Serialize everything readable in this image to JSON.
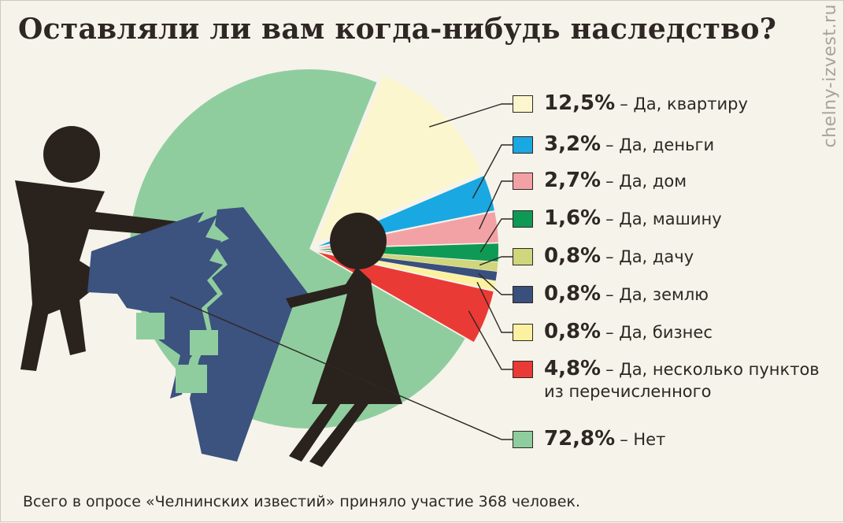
{
  "title": "Оставляли ли вам когда-нибудь наследство?",
  "watermark": "chelny-izvest.ru",
  "footer": "Всего в опросе «Челнинских известий» приняло участие 368 человек.",
  "chart_data": {
    "type": "pie",
    "title": "Оставляли ли вам когда-нибудь наследство?",
    "legend_position": "right",
    "slices": [
      {
        "pct_label": "12,5%",
        "value": 12.5,
        "label": "– Да, квартиру",
        "label2": "",
        "color": "#fcf6cf"
      },
      {
        "pct_label": "3,2%",
        "value": 3.2,
        "label": "– Да, деньги",
        "label2": "",
        "color": "#1aa8e2"
      },
      {
        "pct_label": "2,7%",
        "value": 2.7,
        "label": "– Да, дом",
        "label2": "",
        "color": "#f2a2a5"
      },
      {
        "pct_label": "1,6%",
        "value": 1.6,
        "label": "– Да, машину",
        "label2": "",
        "color": "#0e9a55"
      },
      {
        "pct_label": "0,8%",
        "value": 0.8,
        "label": "– Да, дачу",
        "label2": "",
        "color": "#cfd67c"
      },
      {
        "pct_label": "0,8%",
        "value": 0.8,
        "label": "– Да, землю",
        "label2": "",
        "color": "#394f7c"
      },
      {
        "pct_label": "0,8%",
        "value": 0.8,
        "label": "– Да, бизнес",
        "label2": "",
        "color": "#fbf1a0"
      },
      {
        "pct_label": "4,8%",
        "value": 4.8,
        "label": "– Да, несколько пунктов",
        "label2": "из перечисленного",
        "color": "#ea3a36"
      },
      {
        "pct_label": "72,8%",
        "value": 72.8,
        "label": "– Нет",
        "label2": "",
        "color": "#8fcd9f"
      }
    ]
  }
}
